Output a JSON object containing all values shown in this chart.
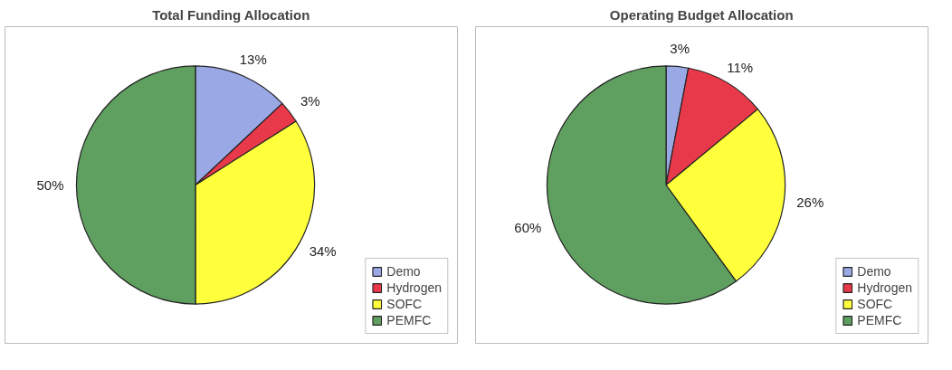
{
  "chart_data": [
    {
      "type": "pie",
      "title": "Total Funding Allocation",
      "categories": [
        "Demo",
        "Hydrogen",
        "SOFC",
        "PEMFC"
      ],
      "values": [
        13,
        3,
        34,
        50
      ],
      "value_labels": [
        "13%",
        "3%",
        "34%",
        "50%"
      ],
      "colors": [
        "#9aa9e6",
        "#e8394a",
        "#ffff3c",
        "#5f9f5f"
      ],
      "legend": "bottom right"
    },
    {
      "type": "pie",
      "title": "Operating Budget Allocation",
      "categories": [
        "Demo",
        "Hydrogen",
        "SOFC",
        "PEMFC"
      ],
      "values": [
        3,
        11,
        26,
        60
      ],
      "value_labels": [
        "3%",
        "11%",
        "26%",
        "60%"
      ],
      "colors": [
        "#9aa9e6",
        "#e8394a",
        "#ffff3c",
        "#5f9f5f"
      ],
      "legend": "bottom right"
    }
  ]
}
